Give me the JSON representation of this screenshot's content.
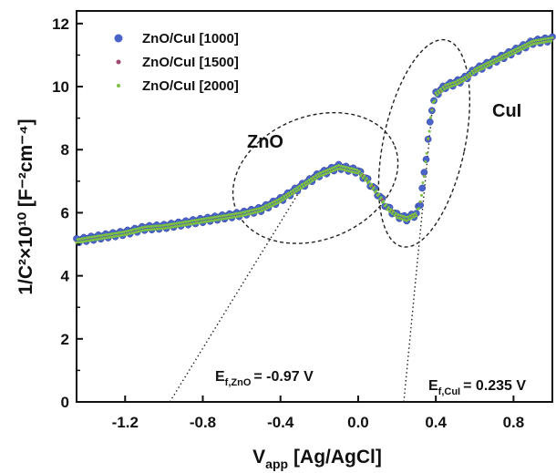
{
  "chart_data": {
    "type": "scatter",
    "xlabel": "V",
    "xlabel_sub": "app",
    "xlabel_unit": "[Ag/AgCl]",
    "ylabel": "1/C²×10¹⁰ [F⁻²cm⁻⁴]",
    "xlim": [
      -1.45,
      1.0
    ],
    "ylim": [
      0,
      12.4
    ],
    "x_ticks": [
      -1.2,
      -0.8,
      -0.4,
      0.0,
      0.4,
      0.8
    ],
    "x_tick_labels": [
      "-1.2",
      "-0.8",
      "-0.4",
      "0.0",
      "0.4",
      "0.8"
    ],
    "y_ticks": [
      0,
      2,
      4,
      6,
      8,
      10,
      12
    ],
    "y_tick_labels": [
      "0",
      "2",
      "4",
      "6",
      "8",
      "10",
      "12"
    ],
    "legend_position": "top-left",
    "series": [
      {
        "name": "ZnO/CuI [1000]",
        "color": "#4a63c8",
        "x": [
          -1.45,
          -1.3,
          -1.2,
          -1.1,
          -1.0,
          -0.9,
          -0.8,
          -0.7,
          -0.6,
          -0.5,
          -0.4,
          -0.3,
          -0.2,
          -0.1,
          0.0,
          0.05,
          0.1,
          0.15,
          0.2,
          0.25,
          0.3,
          0.32,
          0.34,
          0.36,
          0.38,
          0.4,
          0.45,
          0.5,
          0.55,
          0.6,
          0.7,
          0.8,
          0.9,
          1.0
        ],
        "y": [
          5.1,
          5.25,
          5.35,
          5.5,
          5.55,
          5.65,
          5.75,
          5.85,
          5.95,
          6.1,
          6.4,
          6.8,
          7.2,
          7.45,
          7.3,
          7.0,
          6.6,
          6.15,
          5.9,
          5.8,
          5.95,
          6.3,
          7.2,
          8.3,
          9.3,
          9.75,
          10.0,
          10.1,
          10.25,
          10.5,
          10.8,
          11.1,
          11.4,
          11.5
        ]
      },
      {
        "name": "ZnO/CuI [1500]",
        "color": "#a0486e",
        "x": [
          -1.45,
          -1.3,
          -1.2,
          -1.1,
          -1.0,
          -0.9,
          -0.8,
          -0.7,
          -0.6,
          -0.5,
          -0.4,
          -0.3,
          -0.2,
          -0.1,
          0.0,
          0.05,
          0.1,
          0.15,
          0.2,
          0.25,
          0.3,
          0.32,
          0.34,
          0.36,
          0.38,
          0.4,
          0.45,
          0.5,
          0.55,
          0.6,
          0.7,
          0.8,
          0.9,
          1.0
        ],
        "y": [
          5.1,
          5.25,
          5.35,
          5.5,
          5.55,
          5.65,
          5.75,
          5.85,
          5.95,
          6.1,
          6.4,
          6.8,
          7.2,
          7.45,
          7.3,
          7.0,
          6.6,
          6.15,
          5.9,
          5.8,
          5.95,
          6.3,
          7.2,
          8.3,
          9.3,
          9.75,
          10.0,
          10.1,
          10.25,
          10.5,
          10.8,
          11.1,
          11.4,
          11.5
        ]
      },
      {
        "name": "ZnO/CuI [2000]",
        "color": "#7ac143",
        "x": [
          -1.45,
          -1.3,
          -1.2,
          -1.1,
          -1.0,
          -0.9,
          -0.8,
          -0.7,
          -0.6,
          -0.5,
          -0.4,
          -0.3,
          -0.2,
          -0.1,
          0.0,
          0.05,
          0.1,
          0.15,
          0.2,
          0.25,
          0.3,
          0.32,
          0.34,
          0.36,
          0.38,
          0.4,
          0.45,
          0.5,
          0.55,
          0.6,
          0.7,
          0.8,
          0.9,
          1.0
        ],
        "y": [
          5.1,
          5.25,
          5.35,
          5.5,
          5.55,
          5.65,
          5.75,
          5.85,
          5.95,
          6.1,
          6.4,
          6.8,
          7.2,
          7.45,
          7.3,
          7.0,
          6.6,
          6.15,
          5.9,
          5.8,
          5.95,
          6.3,
          7.2,
          8.3,
          9.3,
          9.75,
          10.0,
          10.1,
          10.25,
          10.5,
          10.8,
          11.1,
          11.4,
          11.5
        ]
      }
    ],
    "annotations": {
      "zno_label": "ZnO",
      "cui_label": "CuI",
      "ef_zno_main": "E",
      "ef_zno_sub": "f,ZnO",
      "ef_zno_value": "= -0.97 V",
      "ef_cui_main": "E",
      "ef_cui_sub": "f,CuI",
      "ef_cui_value": "= 0.235 V"
    },
    "zno_ellipse": {
      "cx": -0.22,
      "cy": 7.1,
      "rx": 0.44,
      "ry": 1.95,
      "rotation_deg": -22
    },
    "cui_ellipse": {
      "cx": 0.34,
      "cy": 8.2,
      "rx": 0.21,
      "ry": 3.35,
      "rotation_deg": 12
    },
    "zno_tangent": {
      "x1": -0.97,
      "y1": 0,
      "x2": -0.3,
      "y2": 6.7
    },
    "cui_tangent": {
      "x1": 0.235,
      "y1": 0,
      "x2": 0.38,
      "y2": 9.2
    }
  }
}
